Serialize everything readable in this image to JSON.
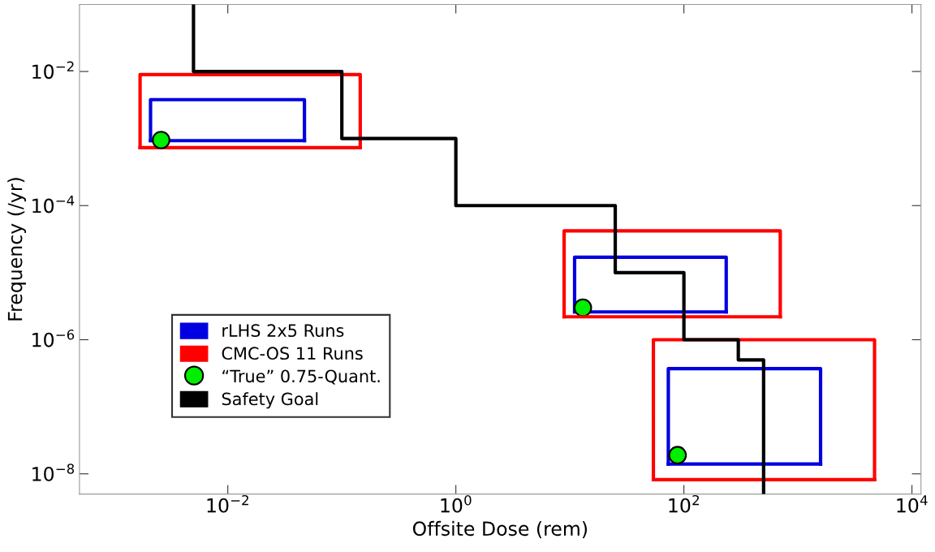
{
  "chart_data": {
    "type": "line",
    "xlabel": "Offsite Dose (rem)",
    "ylabel": "Frequency (/yr)",
    "log": "xy",
    "grid": false,
    "legend": "bottom left",
    "xlim": [
      0.0005,
      12000
    ],
    "ylim": [
      5e-09,
      0.1
    ],
    "xticks": [
      {
        "value": 0.01,
        "label": "10$^{−2}$"
      },
      {
        "value": 1,
        "label": "10$^{0}$"
      },
      {
        "value": 100,
        "label": "10$^{2}$"
      },
      {
        "value": 10000,
        "label": "10$^{4}$"
      }
    ],
    "yticks": [
      {
        "value": 1e-08,
        "label": "10$^{−8}$"
      },
      {
        "value": 1e-06,
        "label": "10$^{−6}$"
      },
      {
        "value": 0.0001,
        "label": "10$^{−4}$"
      },
      {
        "value": 0.01,
        "label": "10$^{−2}$"
      }
    ],
    "series": [
      {
        "name": "rLHS 2x5 Runs",
        "type": "line",
        "color": "#0000e0",
        "x": [
          0.0021,
          0.0021,
          0.047,
          0.047
        ],
        "values": [
          0.00093,
          0.0038,
          0.0038,
          0.00093
        ]
      },
      {
        "type": "line",
        "color": "#0000e0",
        "x": [
          0.0021,
          0.047
        ],
        "values": [
          0.00093,
          0.00093
        ]
      },
      {
        "color": "#0000e0",
        "x": [
          11,
          11,
          235,
          235
        ],
        "values": [
          2.6e-06,
          1.7e-05,
          1.7e-05,
          2.6e-06
        ]
      },
      {
        "color": "#0000e0",
        "x": [
          11,
          235
        ],
        "values": [
          2.6e-06,
          2.6e-06
        ]
      },
      {
        "color": "#0000e0",
        "x": [
          73,
          73,
          1580,
          1580
        ],
        "values": [
          1.4e-08,
          3.7e-07,
          3.7e-07,
          1.4e-08
        ]
      },
      {
        "color": "#0000e0",
        "x": [
          73,
          1580
        ],
        "values": [
          1.4e-08,
          1.4e-08
        ]
      },
      {
        "name": "CMC-OS 11 Runs",
        "type": "line",
        "color": "#ff0000",
        "x": [
          0.0017,
          0.0017,
          0.145,
          0.145
        ],
        "values": [
          0.00073,
          0.009,
          0.009,
          0.00073
        ]
      },
      {
        "color": "#ff0000",
        "x": [
          0.0017,
          0.145
        ],
        "values": [
          0.00073,
          0.00073
        ]
      },
      {
        "color": "#ff0000",
        "x": [
          8.9,
          8.9,
          700,
          700
        ],
        "values": [
          2.2e-06,
          4.2e-05,
          4.2e-05,
          2.2e-06
        ]
      },
      {
        "color": "#ff0000",
        "x": [
          8.9,
          700
        ],
        "values": [
          2.2e-06,
          2.2e-06
        ]
      },
      {
        "color": "#ff0000",
        "x": [
          54,
          54,
          4700,
          4700
        ],
        "values": [
          8.2e-09,
          1e-06,
          1e-06,
          8.2e-09
        ]
      },
      {
        "color": "#ff0000",
        "x": [
          54,
          4700
        ],
        "values": [
          8.2e-09,
          8.2e-09
        ]
      },
      {
        "name": "“True” 0.75-Quant.",
        "type": "scatter",
        "marker": "circle",
        "color": "#00ee00",
        "x": [
          0.0026,
          13,
          88
        ],
        "values": [
          0.00095,
          3e-06,
          1.9e-08
        ]
      },
      {
        "name": "Safety Goal",
        "color": "#000000",
        "x": [
          0.005,
          0.005,
          0.1,
          0.1,
          1,
          1,
          25,
          25,
          100,
          100,
          300,
          300,
          500,
          500
        ],
        "values": [
          0.1,
          0.01,
          0.01,
          0.001,
          0.001,
          0.0001,
          0.0001,
          1e-05,
          1e-05,
          1e-06,
          1e-06,
          5e-07,
          5e-07,
          5e-09
        ]
      }
    ]
  }
}
